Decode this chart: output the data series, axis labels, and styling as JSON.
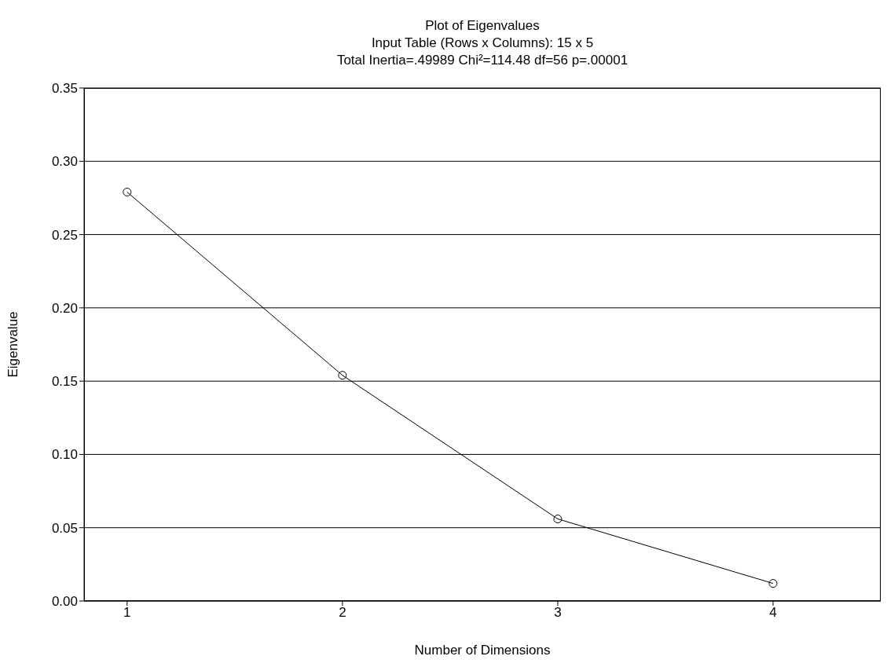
{
  "chart_data": {
    "type": "line",
    "title": "Plot of Eigenvalues",
    "subtitle": "Input Table (Rows x Columns): 15 x 5\nTotal Inertia=.49989 Chi²=114.48 df=56 p=.00001",
    "xlabel": "Number of Dimensions",
    "ylabel": "Eigenvalue",
    "x": [
      1,
      2,
      3,
      4
    ],
    "series": [
      {
        "color": "#000000",
        "values": [
          0.279,
          0.154,
          0.056,
          0.012
        ]
      }
    ],
    "xlim": [
      0.8,
      4.5
    ],
    "xticks": [
      1,
      2,
      3,
      4
    ],
    "ylim": [
      0,
      0.35
    ],
    "yticks": [
      {
        "value": 0,
        "label": "0.00"
      },
      {
        "value": 0.05,
        "label": "0.05"
      },
      {
        "value": 0.1,
        "label": "0.10"
      },
      {
        "value": 0.15,
        "label": "0.15"
      },
      {
        "value": 0.2,
        "label": "0.20"
      },
      {
        "value": 0.25,
        "label": "0.25"
      },
      {
        "value": 0.3,
        "label": "0.30"
      },
      {
        "value": 0.35,
        "label": "0.35"
      }
    ],
    "grid": "y",
    "marker": "circle",
    "line_style": "solid",
    "legend": false
  }
}
